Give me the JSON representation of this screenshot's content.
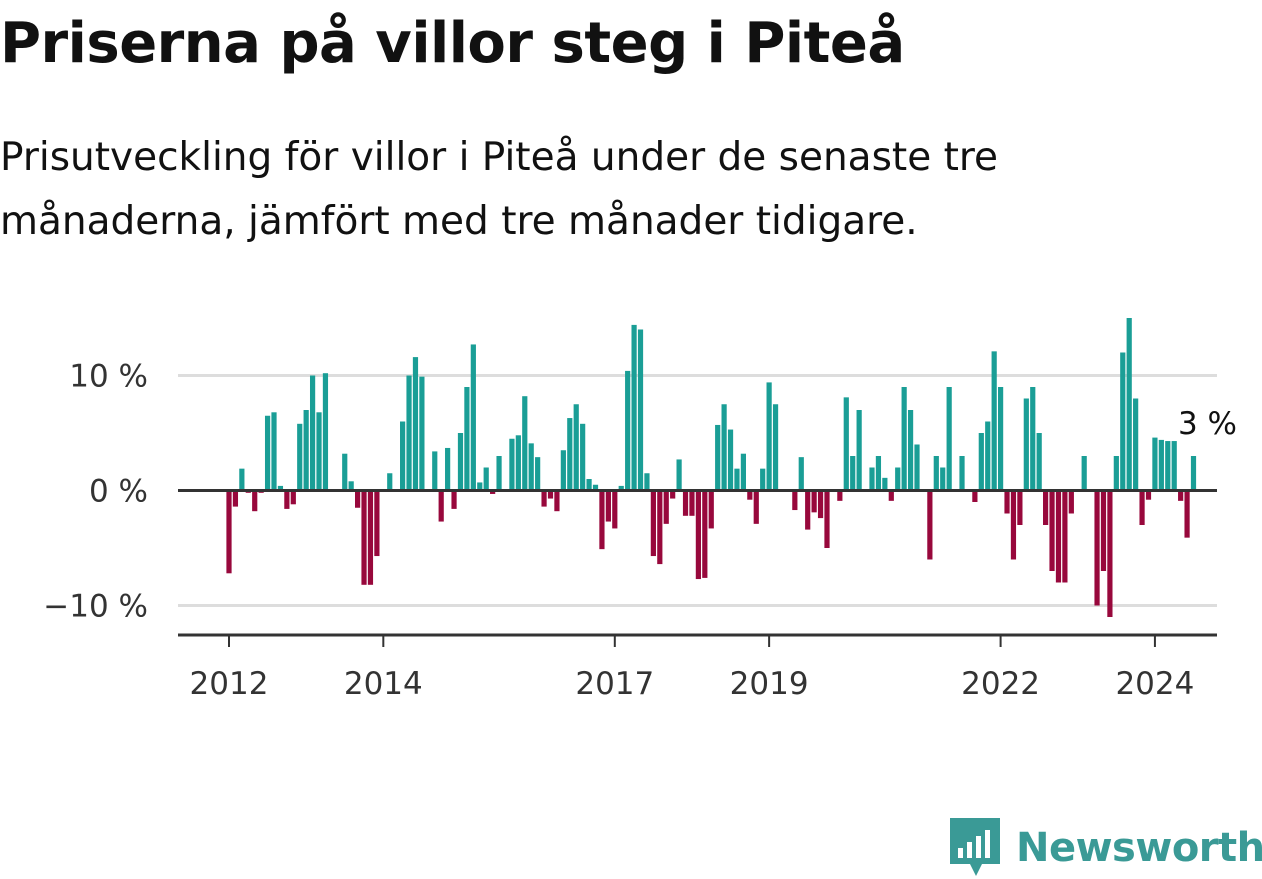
{
  "header": {
    "title": "Priserna på villor steg i Piteå",
    "subtitle": "Prisutveckling för villor i Piteå under de senaste tre månaderna, jämfört med tre månader tidigare."
  },
  "logo": {
    "icon": "newsworthy-logo-icon",
    "text": "Newsworthy"
  },
  "colors": {
    "positive": "#1a9e96",
    "negative": "#98083c",
    "grid": "#dddddd",
    "axis": "#333333"
  },
  "chart_data": {
    "type": "bar",
    "title": "Priserna på villor steg i Piteå",
    "xlabel": "",
    "ylabel": "",
    "ylim": [
      -12.4,
      15.0
    ],
    "grid": true,
    "unit": "%",
    "y_ticks": [
      {
        "value": 10,
        "label": "10 %"
      },
      {
        "value": 0,
        "label": "0 %"
      },
      {
        "value": -10,
        "label": "−10 %"
      }
    ],
    "x_ticks": [
      {
        "month_index": 0,
        "label": "2012"
      },
      {
        "month_index": 24,
        "label": "2014"
      },
      {
        "month_index": 60,
        "label": "2017"
      },
      {
        "month_index": 84,
        "label": "2019"
      },
      {
        "month_index": 120,
        "label": "2022"
      },
      {
        "month_index": 144,
        "label": "2024"
      }
    ],
    "start": "2012-01",
    "values": [
      -7.2,
      -1.4,
      1.9,
      -0.2,
      -1.8,
      -0.2,
      6.5,
      6.8,
      0.4,
      -1.6,
      -1.2,
      5.8,
      7.0,
      10.0,
      6.8,
      10.2,
      0,
      -0.1,
      3.2,
      0.8,
      -1.5,
      -8.2,
      -8.2,
      -5.7,
      0,
      1.5,
      0,
      6.0,
      10.0,
      11.6,
      9.9,
      0,
      3.4,
      -2.7,
      3.7,
      -1.6,
      5.0,
      9.0,
      12.7,
      0.7,
      2.0,
      -0.3,
      3.0,
      0,
      4.5,
      4.8,
      8.2,
      4.1,
      2.9,
      -1.4,
      -0.7,
      -1.8,
      3.5,
      6.3,
      7.5,
      5.8,
      1.0,
      0.5,
      -5.1,
      -2.7,
      -3.3,
      0.4,
      10.4,
      14.4,
      14.0,
      1.5,
      -5.7,
      -6.4,
      -2.9,
      -0.7,
      2.7,
      -2.2,
      -2.2,
      -7.7,
      -7.6,
      -3.3,
      5.7,
      7.5,
      5.3,
      1.9,
      3.2,
      -0.8,
      -2.9,
      1.9,
      9.4,
      7.5,
      0,
      0,
      -1.7,
      2.9,
      -3.4,
      -1.9,
      -2.4,
      -5.0,
      0,
      -0.9,
      8.1,
      3.0,
      7.0,
      0,
      2.0,
      3.0,
      1.1,
      -0.9,
      2.0,
      9.0,
      7.0,
      4.0,
      0,
      -6.0,
      3.0,
      2.0,
      9.0,
      0,
      3.0,
      0,
      -1.0,
      5.0,
      6.0,
      12.1,
      9.0,
      -2.0,
      -6.0,
      -3.0,
      8.0,
      9.0,
      5.0,
      -3.0,
      -7.0,
      -8.0,
      -8.0,
      -2.0,
      0,
      3.0,
      0,
      -10.0,
      -7.0,
      -11.0,
      3.0,
      12.0,
      15.0,
      8.0,
      -3.0,
      -0.8,
      4.6,
      4.4,
      4.3,
      4.3,
      -0.9,
      -4.1,
      3.0
    ],
    "annotations": [
      {
        "month_index": 150,
        "label": "3 %"
      }
    ]
  }
}
